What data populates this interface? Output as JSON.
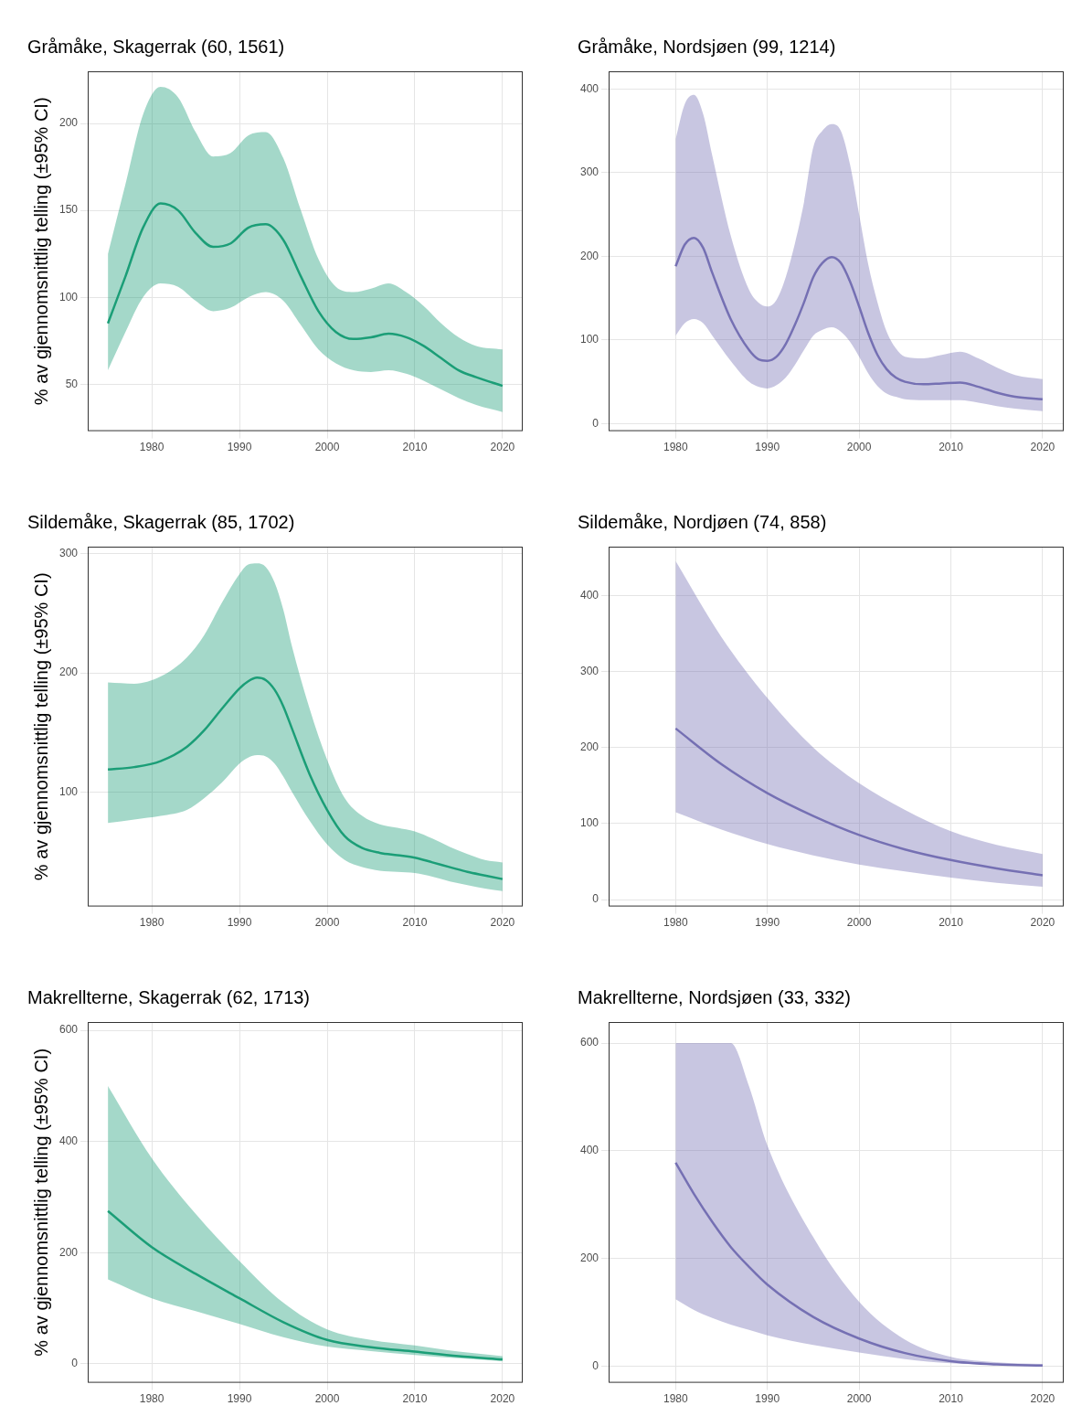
{
  "chart_data": [
    {
      "type": "line",
      "title": "Gråmåke, Skagerrak (60, 1561)",
      "ylabel": "% av gjennomsnittlig telling (±95% CI)",
      "color": "#1b9e77",
      "grid": true,
      "x": [
        1975,
        1977,
        1979,
        1981,
        1983,
        1985,
        1987,
        1989,
        1991,
        1993,
        1995,
        1997,
        1999,
        2001,
        2003,
        2005,
        2007,
        2009,
        2011,
        2013,
        2015,
        2017,
        2020
      ],
      "values": [
        85,
        112,
        140,
        154,
        150,
        137,
        129,
        131,
        140,
        142,
        133,
        112,
        92,
        80,
        76,
        77,
        79,
        77,
        72,
        65,
        58,
        54,
        49
      ],
      "lower": [
        58,
        80,
        100,
        108,
        106,
        98,
        92,
        94,
        100,
        103,
        98,
        84,
        70,
        62,
        58,
        57,
        58,
        56,
        52,
        47,
        42,
        38,
        34
      ],
      "upper": [
        125,
        165,
        205,
        221,
        215,
        195,
        181,
        183,
        193,
        195,
        180,
        150,
        122,
        106,
        103,
        105,
        108,
        103,
        95,
        85,
        77,
        72,
        70
      ],
      "xlim": [
        1972.7,
        2022.3
      ],
      "xticks": [
        1980,
        1990,
        2000,
        2010,
        2020
      ],
      "ylim": [
        23,
        230
      ],
      "yticks": [
        50,
        100,
        150,
        200
      ]
    },
    {
      "type": "line",
      "title": "Gråmåke, Nordsjøen (99, 1214)",
      "color": "#7570b3",
      "grid": true,
      "x": [
        1980,
        1981,
        1982,
        1983,
        1984,
        1986,
        1988,
        1989,
        1990,
        1991,
        1992,
        1993,
        1994,
        1995,
        1996,
        1997,
        1998,
        1999,
        2000,
        2001,
        2002,
        2003,
        2004,
        2005,
        2007,
        2009,
        2011,
        2013,
        2015,
        2017,
        2020
      ],
      "values": [
        188,
        214,
        222,
        210,
        180,
        125,
        88,
        77,
        75,
        80,
        95,
        118,
        145,
        175,
        192,
        199,
        192,
        170,
        140,
        108,
        82,
        65,
        55,
        50,
        47,
        48,
        49,
        44,
        37,
        32,
        29
      ],
      "lower": [
        105,
        120,
        125,
        120,
        105,
        75,
        50,
        44,
        42,
        46,
        55,
        70,
        88,
        105,
        112,
        115,
        110,
        98,
        80,
        60,
        45,
        36,
        32,
        29,
        28,
        28,
        28,
        25,
        21,
        18,
        15
      ],
      "upper": [
        340,
        382,
        393,
        370,
        320,
        225,
        160,
        145,
        140,
        148,
        175,
        215,
        265,
        330,
        350,
        358,
        350,
        310,
        250,
        190,
        145,
        110,
        90,
        80,
        78,
        82,
        86,
        78,
        67,
        58,
        53
      ],
      "xlim": [
        1972.7,
        2022.3
      ],
      "xticks": [
        1980,
        1990,
        2000,
        2010,
        2020
      ],
      "ylim": [
        -9,
        421
      ],
      "yticks": [
        0,
        100,
        200,
        300,
        400
      ]
    },
    {
      "type": "line",
      "title": "Sildemåke, Skagerrak (85, 1702)",
      "ylabel": "% av gjennomsnittlig telling (±95% CI)",
      "color": "#1b9e77",
      "grid": true,
      "x": [
        1975,
        1978,
        1981,
        1984,
        1986,
        1988,
        1990,
        1991,
        1992,
        1993,
        1994,
        1995,
        1996,
        1998,
        2000,
        2002,
        2004,
        2006,
        2008,
        2010,
        2012,
        2014,
        2016,
        2018,
        2020
      ],
      "values": [
        119,
        121,
        126,
        138,
        152,
        170,
        187,
        193,
        196,
        194,
        186,
        172,
        153,
        115,
        85,
        63,
        53,
        49,
        47,
        45,
        41,
        37,
        33,
        30,
        27
      ],
      "lower": [
        74,
        77,
        80,
        85,
        95,
        108,
        124,
        129,
        131,
        130,
        124,
        113,
        100,
        76,
        56,
        43,
        37,
        34,
        33,
        32,
        29,
        25,
        22,
        19,
        17
      ],
      "upper": [
        192,
        191,
        197,
        213,
        232,
        259,
        283,
        291,
        292,
        289,
        276,
        253,
        222,
        170,
        127,
        95,
        80,
        73,
        70,
        67,
        61,
        54,
        48,
        43,
        41
      ],
      "xlim": [
        1972.7,
        2022.3
      ],
      "xticks": [
        1980,
        1990,
        2000,
        2010,
        2020
      ],
      "ylim": [
        4,
        306
      ],
      "yticks": [
        100,
        200,
        300
      ]
    },
    {
      "type": "line",
      "title": "Sildemåke, Nordjøen (74, 858)",
      "color": "#7570b3",
      "grid": true,
      "x": [
        1980,
        1985,
        1990,
        1995,
        2000,
        2005,
        2010,
        2015,
        2020
      ],
      "values": [
        225,
        178,
        140,
        110,
        85,
        66,
        52,
        41,
        32
      ],
      "lower": [
        115,
        92,
        73,
        58,
        46,
        37,
        29,
        22,
        17
      ],
      "upper": [
        445,
        345,
        265,
        200,
        153,
        118,
        90,
        72,
        60
      ],
      "xlim": [
        1972.7,
        2022.3
      ],
      "xticks": [
        1980,
        1990,
        2000,
        2010,
        2020
      ],
      "ylim": [
        -9,
        464
      ],
      "yticks": [
        0,
        100,
        200,
        300,
        400
      ]
    },
    {
      "type": "line",
      "title": "Makrellterne, Skagerrak (62, 1713)",
      "ylabel": "% av gjennomsnittlig telling (±95% CI)",
      "color": "#1b9e77",
      "grid": true,
      "x": [
        1975,
        1980,
        1985,
        1990,
        1995,
        2000,
        2005,
        2010,
        2015,
        2020
      ],
      "values": [
        275,
        210,
        162,
        118,
        75,
        43,
        30,
        22,
        14,
        8
      ],
      "lower": [
        152,
        118,
        95,
        72,
        48,
        31,
        23,
        16,
        10,
        5
      ],
      "upper": [
        500,
        370,
        270,
        185,
        110,
        62,
        43,
        33,
        22,
        14
      ],
      "xlim": [
        1972.7,
        2022.3
      ],
      "xticks": [
        1980,
        1990,
        2000,
        2010,
        2020
      ],
      "ylim": [
        -34,
        615
      ],
      "yticks": [
        0,
        200,
        400,
        600
      ]
    },
    {
      "type": "line",
      "title": "Makrellterne, Nordsjøen (33, 332)",
      "color": "#7570b3",
      "grid": true,
      "x": [
        1980,
        1982,
        1984,
        1986,
        1988,
        1990,
        1995,
        2000,
        2005,
        2010,
        2015,
        2020
      ],
      "values": [
        378,
        320,
        268,
        222,
        185,
        152,
        92,
        52,
        25,
        10,
        4,
        2
      ],
      "lower": [
        125,
        105,
        90,
        78,
        68,
        58,
        40,
        26,
        14,
        6,
        3,
        1
      ],
      "upper": [
        600,
        600,
        600,
        600,
        520,
        410,
        240,
        120,
        50,
        18,
        8,
        5
      ],
      "xlim": [
        1972.7,
        2022.3
      ],
      "xticks": [
        1980,
        1990,
        2000,
        2010,
        2020
      ],
      "ylim": [
        -30,
        639
      ],
      "yticks": [
        0,
        200,
        400,
        600
      ]
    }
  ]
}
